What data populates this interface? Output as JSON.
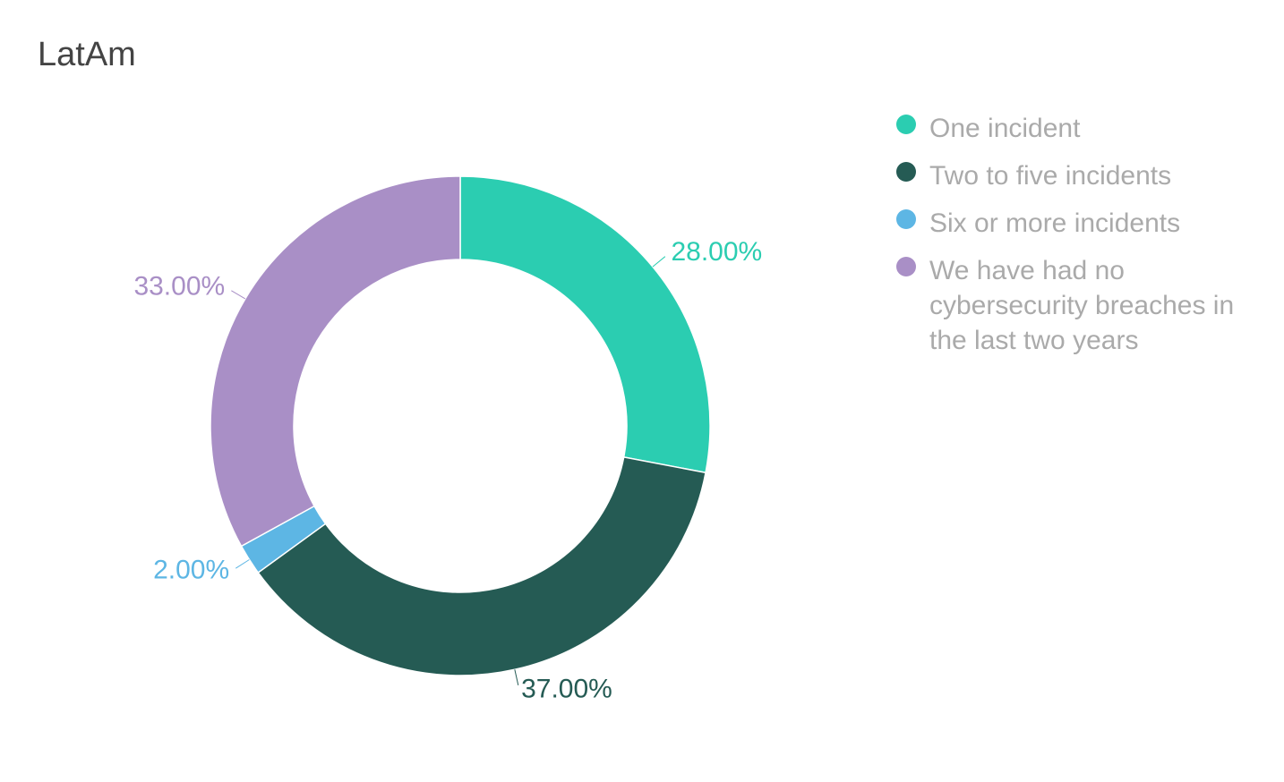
{
  "chart_data": {
    "type": "donut",
    "title": "LatAm",
    "categories": [
      "One incident",
      "Two to five incidents",
      "Six or more incidents",
      "We have had no cybersecurity breaches in the last two years"
    ],
    "values": [
      28,
      37,
      2,
      33
    ],
    "value_labels": [
      "28.00%",
      "37.00%",
      "2.00%",
      "33.00%"
    ],
    "colors": [
      "#2bcdb1",
      "#255b54",
      "#5db6e4",
      "#a98fc6"
    ]
  }
}
